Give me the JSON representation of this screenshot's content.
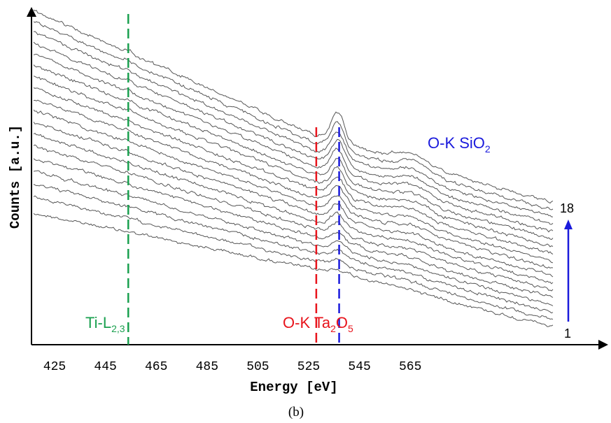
{
  "chart_data": {
    "type": "line",
    "xlabel": "Energy [eV]",
    "ylabel": "Counts [a.u.]",
    "caption": "(b)",
    "xticks": [
      425,
      445,
      465,
      485,
      505,
      525,
      545,
      565
    ],
    "xlim": [
      415,
      583
    ],
    "yticks": "none",
    "grid": false,
    "spectra_count": 18,
    "series_label_bottom": "1",
    "series_label_top": "18",
    "markers": [
      {
        "label_main": "Ti-L",
        "label_sub": "2,3",
        "energy": 454,
        "color": "#1aa04f"
      },
      {
        "label_main": "O-K Ta",
        "label_sub": "2",
        "label_mid": "O",
        "label_sub2": "5",
        "energy": 528,
        "color": "#e8141c"
      },
      {
        "label_main": "O-K SiO",
        "label_sub": "2",
        "energy": 537,
        "color": "#1a1adc"
      }
    ],
    "arrow_color": "#1a1adc",
    "trace_color": "#555555",
    "features": {
      "oxygen_k_peak_energy": 536.5,
      "broad_peak_energy": 566
    }
  }
}
